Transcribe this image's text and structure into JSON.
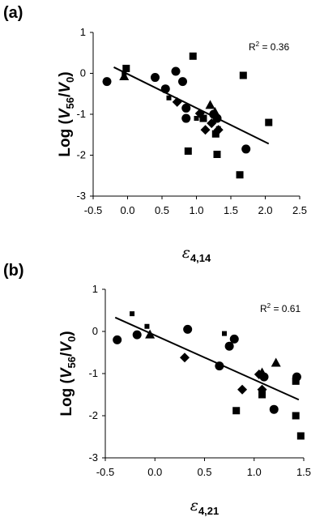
{
  "chart_data": [
    {
      "panel_label": "(a)",
      "type": "scatter",
      "ylabel": {
        "prefix": "Log (",
        "v1": "V",
        "sub1": "56",
        "slash": "/",
        "v2": "V",
        "sub2": "0",
        "suffix": ")"
      },
      "xlabel": {
        "symbol": "ε",
        "sub": "4,14"
      },
      "annotation": {
        "text": "R",
        "sup": "2",
        "rest": " = 0.36"
      },
      "xlim": [
        -0.5,
        2.5
      ],
      "ylim": [
        -3,
        1
      ],
      "xticks": [
        "-0.5",
        "0.0",
        "0.5",
        "1.0",
        "1.5",
        "2.0",
        "2.5"
      ],
      "yticks": [
        "1",
        "0",
        "-1",
        "-2",
        "-3"
      ],
      "fit_line": {
        "x": [
          -0.2,
          2.05
        ],
        "y": [
          0.15,
          -1.72
        ]
      },
      "series": [
        {
          "marker": "circle",
          "points": [
            [
              -0.3,
              -0.2
            ],
            [
              0.4,
              -0.1
            ],
            [
              0.55,
              -0.38
            ],
            [
              0.7,
              0.05
            ],
            [
              0.8,
              -0.2
            ],
            [
              0.85,
              -0.85
            ],
            [
              0.85,
              -1.1
            ],
            [
              1.25,
              -1.0
            ],
            [
              1.3,
              -1.1
            ],
            [
              1.72,
              -1.85
            ]
          ]
        },
        {
          "marker": "square",
          "points": [
            [
              -0.02,
              0.12
            ],
            [
              0.95,
              0.42
            ],
            [
              0.88,
              -1.9
            ],
            [
              1.1,
              -1.1
            ],
            [
              1.28,
              -1.48
            ],
            [
              1.3,
              -1.98
            ],
            [
              1.63,
              -2.48
            ],
            [
              1.68,
              -0.05
            ],
            [
              2.05,
              -1.2
            ]
          ]
        },
        {
          "marker": "small-square",
          "points": [
            [
              -0.05,
              -0.02
            ],
            [
              0.6,
              -0.6
            ],
            [
              1.0,
              -1.1
            ],
            [
              1.32,
              -1.35
            ]
          ]
        },
        {
          "marker": "triangle",
          "points": [
            [
              -0.05,
              -0.08
            ],
            [
              1.2,
              -0.78
            ],
            [
              1.27,
              -0.95
            ]
          ]
        },
        {
          "marker": "diamond",
          "points": [
            [
              0.72,
              -0.7
            ],
            [
              1.05,
              -0.98
            ],
            [
              1.13,
              -1.38
            ],
            [
              1.22,
              -1.22
            ],
            [
              1.32,
              -1.38
            ]
          ]
        }
      ]
    },
    {
      "panel_label": "(b)",
      "type": "scatter",
      "ylabel": {
        "prefix": "Log (",
        "v1": "V",
        "sub1": "56",
        "slash": "/",
        "v2": "V",
        "sub2": "0",
        "suffix": ")"
      },
      "xlabel": {
        "symbol": "ε",
        "sub": "4,21"
      },
      "annotation": {
        "text": "R",
        "sup": "2",
        "rest": " = 0.61"
      },
      "xlim": [
        -0.5,
        1.5
      ],
      "ylim": [
        -3,
        1
      ],
      "xticks": [
        "-0.5",
        "0.0",
        "0.5",
        "1.0",
        "1.5"
      ],
      "yticks": [
        "1",
        "0",
        "-1",
        "-2",
        "-3"
      ],
      "fit_line": {
        "x": [
          -0.4,
          1.45
        ],
        "y": [
          0.33,
          -1.62
        ]
      },
      "series": [
        {
          "marker": "circle",
          "points": [
            [
              -0.38,
              -0.2
            ],
            [
              -0.18,
              -0.08
            ],
            [
              0.33,
              0.05
            ],
            [
              0.65,
              -0.82
            ],
            [
              0.75,
              -0.35
            ],
            [
              0.8,
              -0.18
            ],
            [
              1.1,
              -1.08
            ],
            [
              1.2,
              -1.85
            ],
            [
              1.43,
              -1.08
            ]
          ]
        },
        {
          "marker": "square",
          "points": [
            [
              0.82,
              -1.88
            ],
            [
              1.08,
              -1.5
            ],
            [
              1.42,
              -2.0
            ],
            [
              1.42,
              -1.18
            ],
            [
              1.47,
              -2.48
            ]
          ]
        },
        {
          "marker": "small-square",
          "points": [
            [
              -0.23,
              0.42
            ],
            [
              -0.08,
              0.12
            ],
            [
              0.7,
              -0.05
            ]
          ]
        },
        {
          "marker": "triangle",
          "points": [
            [
              -0.05,
              -0.08
            ],
            [
              1.08,
              -0.98
            ],
            [
              1.22,
              -0.75
            ]
          ]
        },
        {
          "marker": "diamond",
          "points": [
            [
              0.3,
              -0.62
            ],
            [
              0.88,
              -1.38
            ],
            [
              1.05,
              -1.02
            ],
            [
              1.08,
              -1.38
            ]
          ]
        }
      ]
    }
  ]
}
